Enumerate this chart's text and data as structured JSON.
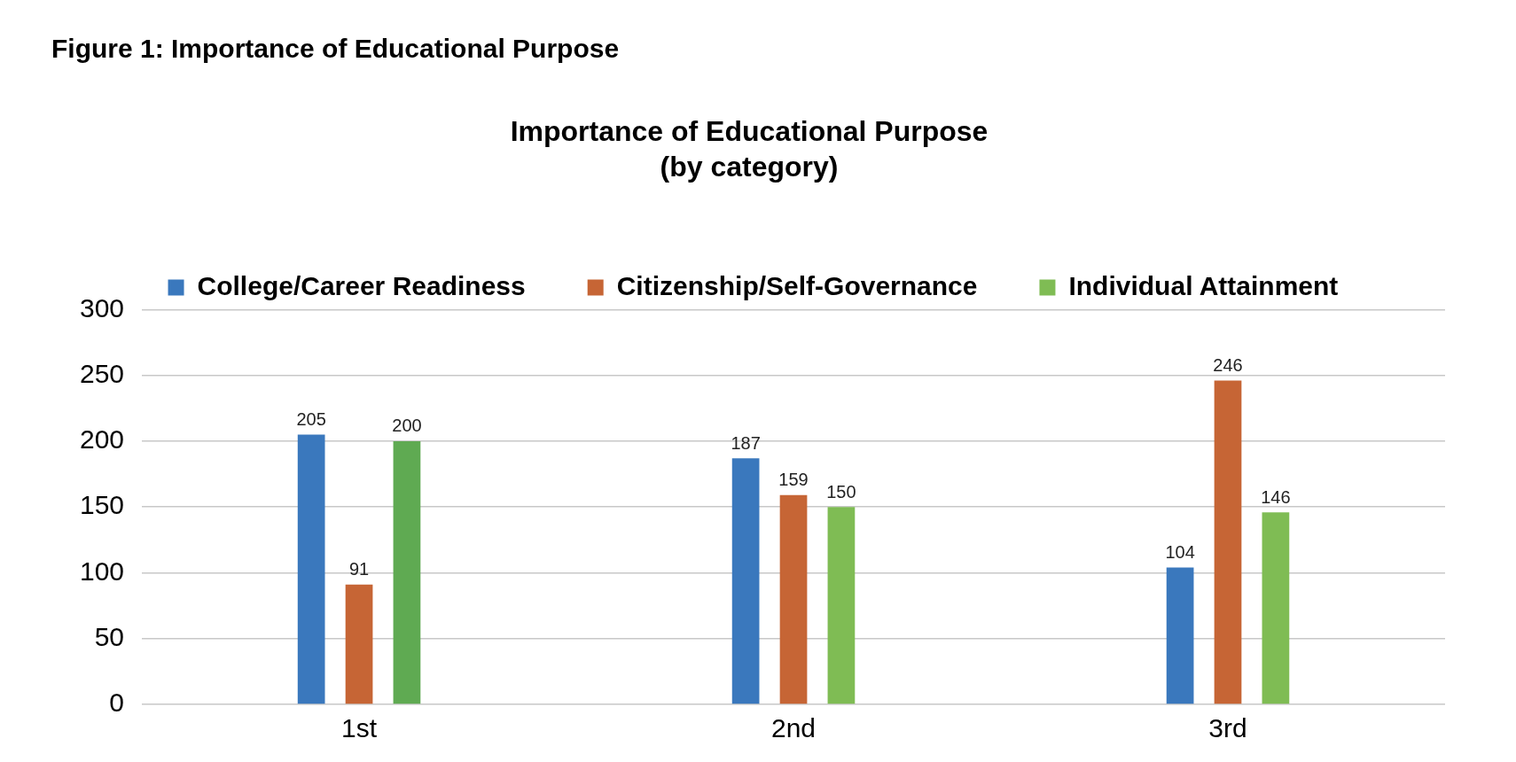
{
  "chart_data": {
    "type": "bar",
    "title": "Figure 1: Importance of Educational Purpose",
    "subtitle": "Importance of Educational Purpose (by category)",
    "categories": [
      "1st",
      "2nd",
      "3rd"
    ],
    "series": [
      {
        "name": "College/Career Readiness",
        "color": "#3a78bd",
        "values": [
          205,
          187,
          104
        ]
      },
      {
        "name": "Citizenship/Self-Governance",
        "color": "#c66535",
        "values": [
          91,
          159,
          246
        ]
      },
      {
        "name": "Individual Attainment",
        "color": "#7fbc54",
        "colors": [
          "#5faa52",
          "#7fbc54",
          "#7fbc54"
        ],
        "values": [
          200,
          150,
          146
        ]
      }
    ],
    "ylim": [
      0,
      300
    ],
    "yticks": [
      0,
      50,
      100,
      150,
      200,
      250,
      300
    ],
    "grid": "y",
    "legend": "top",
    "data_labels": true
  }
}
